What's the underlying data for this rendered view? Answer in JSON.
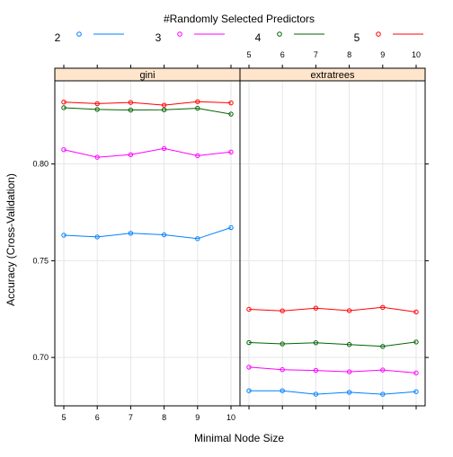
{
  "chart_data": {
    "type": "line",
    "legend_title": "#Randomly Selected Predictors",
    "legend_position": "top",
    "xlabel": "Minimal Node Size",
    "ylabel": "Accuracy (Cross-Validation)",
    "x": [
      5,
      6,
      7,
      8,
      9,
      10
    ],
    "x_tick_labels": [
      "5",
      "6",
      "7",
      "8",
      "9",
      "10"
    ],
    "xlim": [
      4.95,
      10.05
    ],
    "ylim": [
      0.675,
      0.843
    ],
    "y_ticks": [
      0.7,
      0.75,
      0.8
    ],
    "y_tick_labels": [
      "0.70",
      "0.75",
      "0.80"
    ],
    "grid": true,
    "series_colors": {
      "2": "#0080ff",
      "3": "#ff00ff",
      "4": "#006400",
      "5": "#ff0000"
    },
    "panels": [
      {
        "title": "gini",
        "series": [
          {
            "name": "2",
            "values": [
              0.7632,
              0.7623,
              0.7642,
              0.7634,
              0.7614,
              0.7671
            ]
          },
          {
            "name": "3",
            "values": [
              0.8074,
              0.8035,
              0.8048,
              0.808,
              0.8043,
              0.8062
            ]
          },
          {
            "name": "4",
            "values": [
              0.8291,
              0.8282,
              0.8279,
              0.828,
              0.8288,
              0.8258
            ]
          },
          {
            "name": "5",
            "values": [
              0.832,
              0.8312,
              0.8318,
              0.8304,
              0.8322,
              0.8316
            ]
          }
        ]
      },
      {
        "title": "extratrees",
        "series": [
          {
            "name": "2",
            "values": [
              0.6828,
              0.6828,
              0.681,
              0.682,
              0.681,
              0.6823
            ]
          },
          {
            "name": "3",
            "values": [
              0.695,
              0.6937,
              0.6933,
              0.6926,
              0.6935,
              0.692
            ]
          },
          {
            "name": "4",
            "values": [
              0.7077,
              0.707,
              0.7076,
              0.7067,
              0.7057,
              0.708
            ]
          },
          {
            "name": "5",
            "values": [
              0.7249,
              0.7241,
              0.7255,
              0.7242,
              0.7259,
              0.7235
            ]
          }
        ]
      }
    ]
  }
}
